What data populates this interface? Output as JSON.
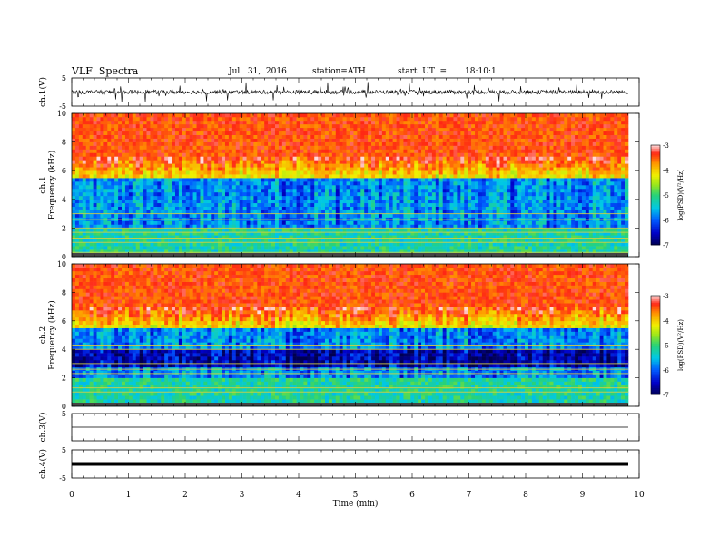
{
  "header": {
    "title": "VLF  Spectra",
    "date": "Jul.  31,  2016",
    "station": "station=ATH",
    "start_label": "start  UT  =",
    "start_time": "18:10:1"
  },
  "chart_data": [
    {
      "type": "line",
      "panel": "ch1-waveform",
      "ylabel": "ch.1(V)",
      "ylim": [
        -5,
        5
      ],
      "yticks": [
        "5",
        "-5"
      ],
      "xlim": [
        0,
        10
      ],
      "description_values": {
        "baseline": 0,
        "noise_amplitude": 1
      }
    },
    {
      "type": "heatmap",
      "panel": "ch1-spectrogram",
      "ylabel": "ch.1\nFrequency  (kHz)",
      "ylabel_lines": [
        "ch.1",
        "Frequency  (kHz)"
      ],
      "ylim": [
        0,
        10
      ],
      "yticks": [
        "0",
        "2",
        "4",
        "6",
        "8",
        "10"
      ],
      "xlim": [
        0,
        9.8
      ],
      "colorbar": {
        "label": "log(PSD)(V²/Hz)",
        "range": [
          -7,
          -3
        ],
        "ticks": [
          "-3",
          "-4",
          "-5",
          "-6",
          "-7"
        ]
      },
      "horizontal_lines_khz": [
        0.3,
        1.0,
        1.3,
        1.7,
        2.0,
        2.6,
        3.0
      ]
    },
    {
      "type": "heatmap",
      "panel": "ch2-spectrogram",
      "ylabel": "ch.2\nFrequency  (kHz)",
      "ylabel_lines": [
        "ch.2",
        "Frequency  (kHz)"
      ],
      "ylim": [
        0,
        10
      ],
      "yticks": [
        "0",
        "2",
        "4",
        "6",
        "8",
        "10"
      ],
      "xlim": [
        0,
        9.8
      ],
      "colorbar": {
        "label": "log(PSD)(V²/Hz)",
        "range": [
          -7,
          -3
        ],
        "ticks": [
          "-3",
          "-4",
          "-5",
          "-6",
          "-7"
        ]
      },
      "horizontal_lines_khz": [
        1.0,
        1.3,
        2.3,
        2.6,
        3.0,
        4.0,
        4.3
      ]
    },
    {
      "type": "line",
      "panel": "ch3-waveform",
      "ylabel": "ch.3(V)",
      "ylim": [
        -5,
        5
      ],
      "yticks": [
        "5"
      ],
      "xlim": [
        0,
        10
      ],
      "description_values": {
        "baseline": 0
      }
    },
    {
      "type": "line",
      "panel": "ch4-waveform",
      "ylabel": "ch.4(V)",
      "ylim": [
        -5,
        5
      ],
      "yticks": [
        "5",
        "-5"
      ],
      "xlim": [
        0,
        10
      ],
      "xlabel": "Time  (min)",
      "xticks": [
        "0",
        "1",
        "2",
        "3",
        "4",
        "5",
        "6",
        "7",
        "8",
        "9",
        "10"
      ],
      "description_values": {
        "baseline": 0
      }
    }
  ]
}
